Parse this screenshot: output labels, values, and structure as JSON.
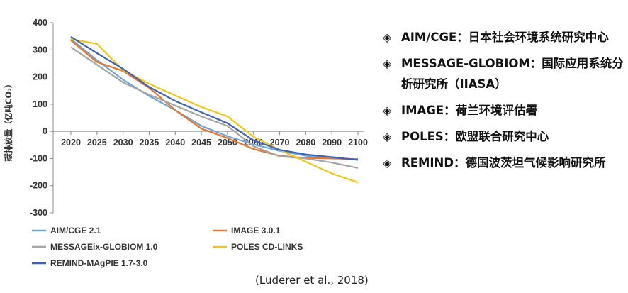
{
  "chart_data": {
    "type": "line",
    "title": "",
    "xlabel": "",
    "ylabel": "碳排放量（亿吨CO₂）",
    "categories": [
      "2020",
      "2025",
      "2030",
      "2035",
      "2040",
      "2045",
      "2050",
      "2060",
      "2070",
      "2080",
      "2090",
      "2100"
    ],
    "ylim": [
      -300,
      400
    ],
    "yticks": [
      -300,
      -200,
      -100,
      0,
      100,
      200,
      300,
      400
    ],
    "grid": false,
    "legend_position": "bottom",
    "series": [
      {
        "name": "AIM/CGE 2.1",
        "color": "#6fa6d9",
        "values": [
          340,
          262,
          190,
          130,
          78,
          20,
          -18,
          -48,
          -72,
          -90,
          -98,
          -105
        ]
      },
      {
        "name": "IMAGE 3.0.1",
        "color": "#e8762d",
        "values": [
          335,
          255,
          222,
          160,
          78,
          10,
          -25,
          -65,
          -90,
          -98,
          -100,
          -102
        ]
      },
      {
        "name": "MESSAGEix-GLOBIOM 1.0",
        "color": "#a5a5a5",
        "values": [
          310,
          245,
          180,
          135,
          95,
          55,
          20,
          -55,
          -92,
          -100,
          -115,
          -135
        ]
      },
      {
        "name": "POLES CD-LINKS",
        "color": "#f5c518",
        "values": [
          340,
          322,
          225,
          175,
          132,
          90,
          55,
          -20,
          -68,
          -112,
          -155,
          -188
        ]
      },
      {
        "name": "REMIND-MAgPIE 1.7-3.0",
        "color": "#3b63b8",
        "values": [
          348,
          288,
          230,
          163,
          112,
          70,
          30,
          -33,
          -68,
          -85,
          -95,
          -105
        ]
      }
    ]
  },
  "side_list": [
    {
      "bullet": "◈",
      "text": "AIM/CGE：日本社会环境系统研究中心"
    },
    {
      "bullet": "◈",
      "text": "MESSAGE-GLOBIOM：国际应用系统分析研究所（IIASA）"
    },
    {
      "bullet": "◈",
      "text": "IMAGE：荷兰环境评估署"
    },
    {
      "bullet": "◈",
      "text": "POLES：欧盟联合研究中心"
    },
    {
      "bullet": "◈",
      "text": "REMIND：德国波茨坦气候影响研究所"
    }
  ],
  "source": "(Luderer et al., 2018)"
}
